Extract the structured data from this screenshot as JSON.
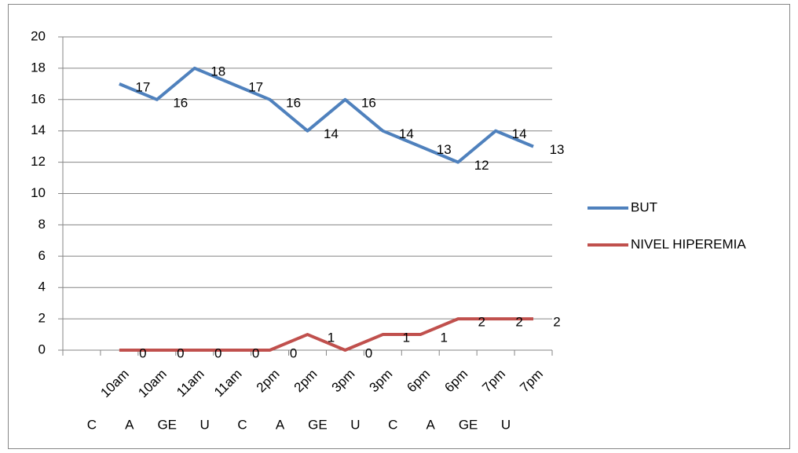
{
  "chart_data": {
    "type": "line",
    "categories": [
      null,
      "10am",
      "10am",
      "11am",
      "11am",
      "2pm",
      "2pm",
      "3pm",
      "3pm",
      "6pm",
      "6pm",
      "7pm",
      "7pm"
    ],
    "groups": [
      null,
      "C",
      "A",
      "GE",
      "U",
      "C",
      "A",
      "GE",
      "U",
      "C",
      "A",
      "GE",
      "U"
    ],
    "series": [
      {
        "name": "BUT",
        "color": "#4f81bd",
        "values": [
          null,
          17,
          16,
          18,
          17,
          16,
          14,
          16,
          14,
          13,
          12,
          14,
          13
        ]
      },
      {
        "name": "NIVEL HIPEREMIA",
        "color": "#c0504d",
        "values": [
          null,
          0,
          0,
          0,
          0,
          0,
          1,
          0,
          1,
          1,
          2,
          2,
          2
        ]
      }
    ],
    "ylim": [
      0,
      20
    ],
    "yticks": [
      0,
      2,
      4,
      6,
      8,
      10,
      12,
      14,
      16,
      18,
      20
    ],
    "grid": true,
    "legend": "right"
  }
}
